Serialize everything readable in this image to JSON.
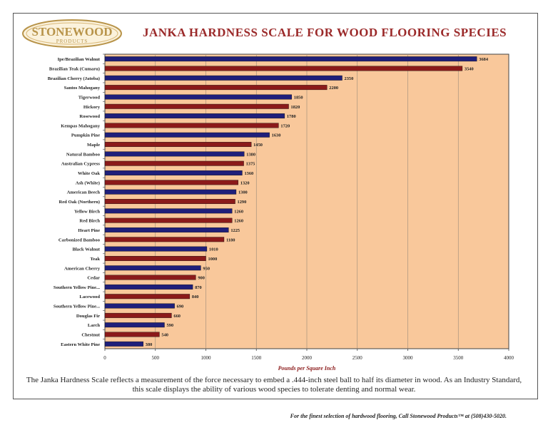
{
  "logo": {
    "line1": "STONEWOOD",
    "line2": "PRODUCTS"
  },
  "chart_data": {
    "type": "bar",
    "orientation": "horizontal",
    "title": "JANKA HARDNESS SCALE FOR WOOD FLOORING SPECIES",
    "xlabel": "Pounds per Square Inch",
    "ylabel": "",
    "xlim": [
      0,
      4000
    ],
    "xticks": [
      0,
      500,
      1000,
      1500,
      2000,
      2500,
      3000,
      3500,
      4000
    ],
    "grid": true,
    "categories": [
      "Ipe/Brazilian Walnut",
      "Brazilian Teak (Cumaru)",
      "Brazilian Cherry (Jatoba)",
      "Santos Mahogany",
      "Tigerwood",
      "Hickory",
      "Rosewood",
      "Kempas Mahogany",
      "Pumpkin Pine",
      "Maple",
      "Natural Bamboo",
      "Australian Cypress",
      "White Oak",
      "Ash (White)",
      "American Beech",
      "Red Oak (Northern)",
      "Yellow Birch",
      "Red Birch",
      "Heart Pine",
      "Carbonized Bamboo",
      "Black Walnut",
      "Teak",
      "American Cherry",
      "Cedar",
      "Southern Yellow Pine...",
      "Lacewood",
      "Southern Yellow Pine...",
      "Douglas Fir",
      "Larch",
      "Chestnut",
      "Eastern White Pine"
    ],
    "values": [
      3684,
      3540,
      2350,
      2200,
      1850,
      1820,
      1780,
      1720,
      1630,
      1450,
      1380,
      1375,
      1360,
      1320,
      1300,
      1290,
      1260,
      1260,
      1225,
      1180,
      1010,
      1000,
      950,
      900,
      870,
      840,
      690,
      660,
      590,
      540,
      380
    ],
    "value_labels": [
      "3684",
      "3540",
      "2350",
      "2200",
      "1850",
      "1820",
      "1780",
      "1720",
      "1630",
      "1450",
      "1380",
      "1375",
      "1360",
      "1320",
      "1300",
      "1290",
      "1260",
      "1260",
      "1225",
      "1180",
      "1010",
      "1000",
      "950",
      "900",
      "870",
      "840",
      "690",
      "660",
      "590",
      "540",
      "380"
    ],
    "bar_colors": [
      "#1f1f7a",
      "#8b1a1a"
    ]
  },
  "colors": {
    "plot_background": "#f9c89b",
    "title": "#9b2a2a",
    "xlabel": "#8b1a1a"
  },
  "description": "The Janka Hardness Scale reflects a measurement of the force necessary to embed a .444-inch steel ball to half its diameter in wood.  As an Industry Standard, this scale displays the ability of various wood species to tolerate denting and normal wear.",
  "footer": "For the finest selection of hardwood flooring, Call Stonewood Products™ at (508)430-5020."
}
